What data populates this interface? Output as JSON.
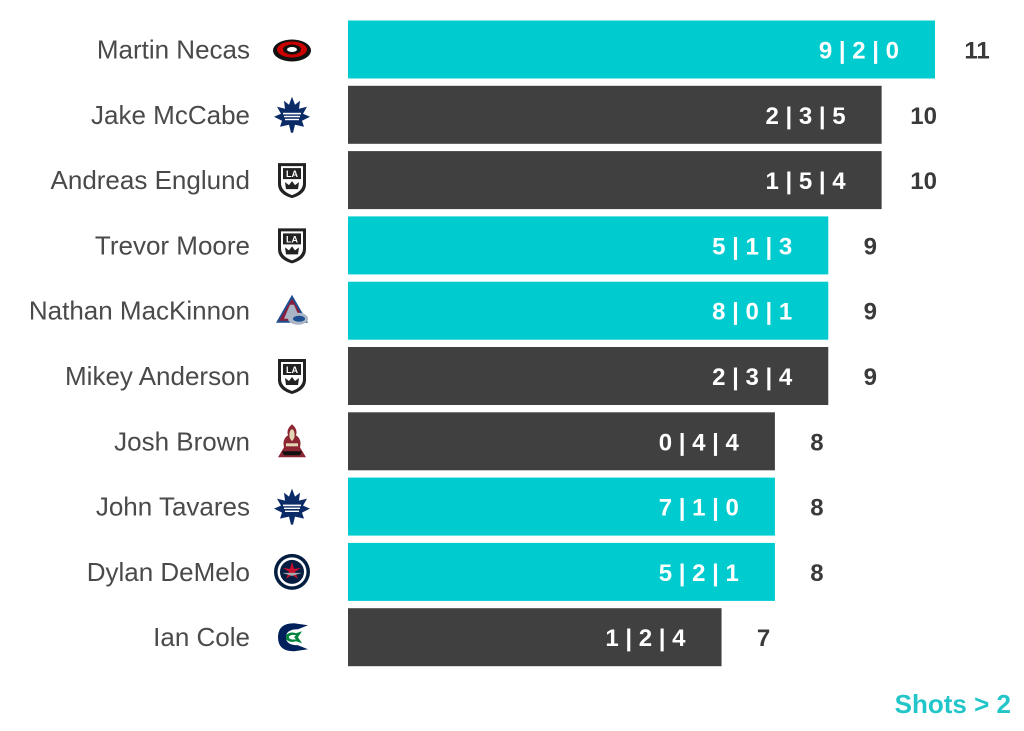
{
  "chart_data": {
    "type": "bar",
    "orientation": "horizontal",
    "categories": [
      "Martin Necas",
      "Jake McCabe",
      "Andreas Englund",
      "Trevor Moore",
      "Nathan MacKinnon",
      "Mikey Anderson",
      "Josh Brown",
      "John Tavares",
      "Dylan DeMelo",
      "Ian Cole"
    ],
    "teams": [
      "carolina-hurricanes-icon",
      "toronto-maple-leafs-icon",
      "los-angeles-kings-icon",
      "los-angeles-kings-icon",
      "colorado-avalanche-icon",
      "los-angeles-kings-icon",
      "arizona-coyotes-icon",
      "toronto-maple-leafs-icon",
      "winnipeg-jets-icon",
      "vancouver-canucks-icon"
    ],
    "values": [
      11,
      10,
      10,
      9,
      9,
      9,
      8,
      8,
      8,
      7
    ],
    "bar_labels": [
      "9 | 2 | 0",
      "2 | 3 | 5",
      "1 | 5 | 4",
      "5 | 1 | 3",
      "8 | 0 | 1",
      "2 | 3 | 4",
      "0 | 4 | 4",
      "7 | 1 | 0",
      "5 | 2 | 1",
      "1 | 2 | 4"
    ],
    "highlight": [
      true,
      false,
      false,
      true,
      true,
      false,
      false,
      true,
      true,
      false
    ],
    "colors": {
      "highlight": "#00cccf",
      "default": "#404040"
    },
    "legend_note": "Shots > 2",
    "xlim": [
      0,
      11
    ]
  }
}
